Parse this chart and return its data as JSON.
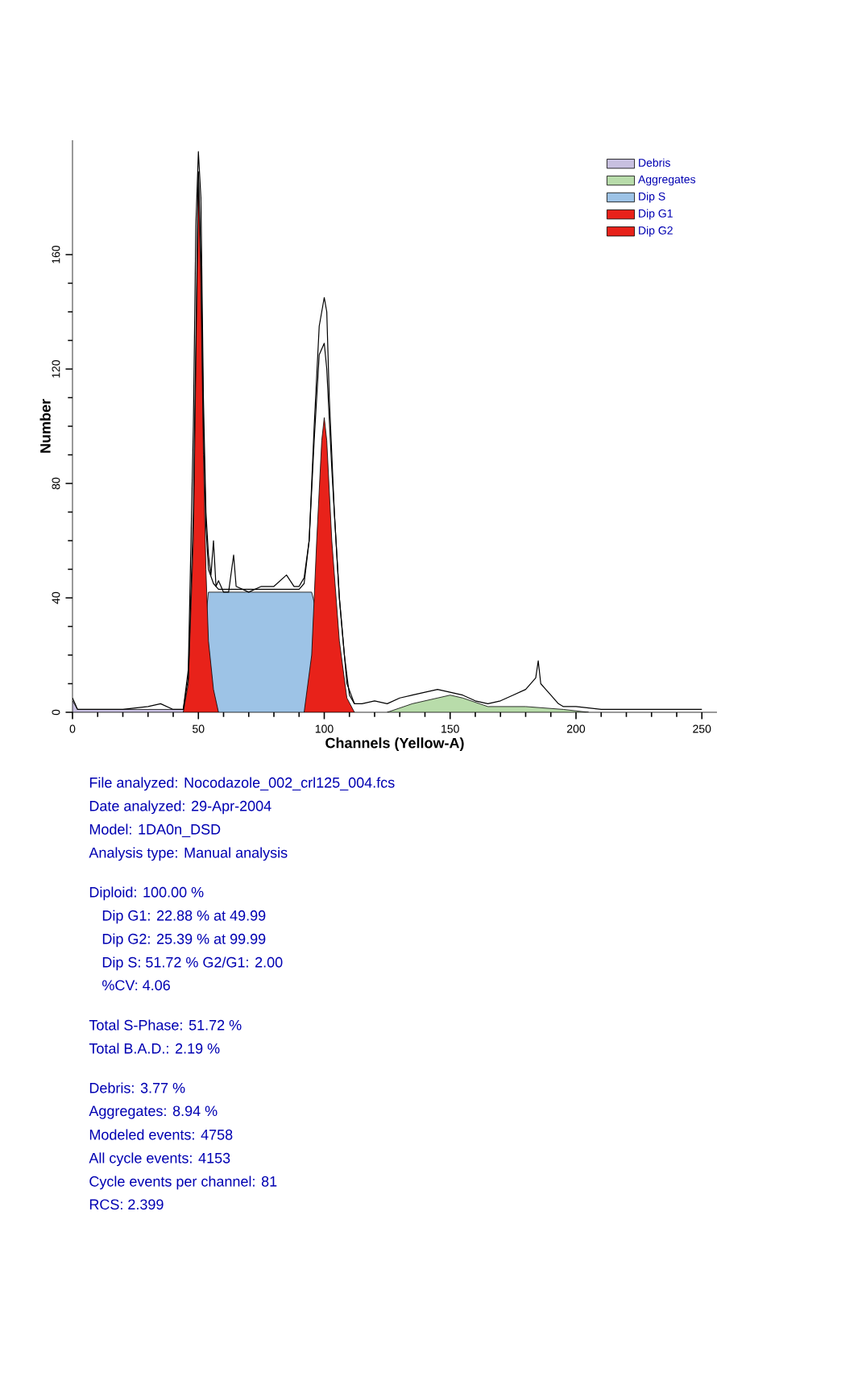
{
  "chart_data": {
    "type": "area",
    "xlabel": "Channels (Yellow-A)",
    "ylabel": "Number",
    "xlim": [
      0,
      256
    ],
    "ylim": [
      0,
      200
    ],
    "xticks": [
      0,
      50,
      100,
      150,
      200,
      250
    ],
    "yticks": [
      0,
      40,
      80,
      120,
      160
    ],
    "legend": "top right",
    "grid": false,
    "series": [
      {
        "name": "Debris",
        "color": "#c8c0e0",
        "x": [
          0,
          2,
          10,
          20,
          30,
          40,
          45,
          48
        ],
        "values": [
          4,
          1,
          1,
          1,
          1,
          1,
          1,
          0
        ]
      },
      {
        "name": "Aggregates",
        "color": "#b8dcaa",
        "x": [
          125,
          135,
          145,
          150,
          155,
          165,
          180,
          195,
          205
        ],
        "values": [
          0,
          3,
          5,
          6,
          5,
          2,
          2,
          1,
          0
        ]
      },
      {
        "name": "Dip S",
        "color": "#9dc3e6",
        "x": [
          49,
          54,
          95,
          107
        ],
        "values": [
          0,
          42,
          42,
          0
        ]
      },
      {
        "name": "Dip G1",
        "color": "#e8221a",
        "x": [
          44,
          46,
          48,
          49,
          50,
          51,
          52,
          53,
          54,
          56,
          58
        ],
        "values": [
          0,
          10,
          60,
          120,
          189,
          150,
          90,
          50,
          25,
          8,
          0
        ]
      },
      {
        "name": "Dip G2",
        "color": "#e8221a",
        "x": [
          92,
          95,
          97,
          99,
          100,
          101,
          103,
          106,
          109,
          112
        ],
        "values": [
          0,
          20,
          60,
          95,
          103,
          95,
          60,
          25,
          5,
          0
        ]
      },
      {
        "type": "line",
        "color": "#000000",
        "x": [
          0,
          1,
          2,
          5,
          10,
          20,
          30,
          35,
          40,
          44,
          46,
          48,
          49,
          50,
          51,
          52,
          53,
          54,
          55,
          56,
          57,
          58,
          60,
          62,
          64,
          65,
          70,
          75,
          80,
          85,
          88,
          90,
          92,
          94,
          96,
          98,
          100,
          101,
          102,
          104,
          106,
          108,
          110,
          112,
          115,
          120,
          125,
          130,
          135,
          140,
          145,
          150,
          155,
          160,
          165,
          170,
          175,
          180,
          184,
          185,
          186,
          188,
          190,
          193,
          195,
          200,
          210,
          220,
          230,
          240,
          250
        ],
        "values": [
          5,
          3,
          1,
          1,
          1,
          1,
          2,
          3,
          1,
          1,
          15,
          100,
          170,
          196,
          180,
          110,
          70,
          55,
          48,
          60,
          44,
          46,
          42,
          42,
          55,
          44,
          42,
          44,
          44,
          48,
          44,
          44,
          47,
          60,
          100,
          135,
          145,
          140,
          110,
          70,
          40,
          20,
          6,
          3,
          3,
          4,
          3,
          5,
          6,
          7,
          8,
          7,
          6,
          4,
          3,
          4,
          6,
          8,
          12,
          18,
          10,
          8,
          6,
          3,
          2,
          2,
          1,
          1,
          1,
          1,
          1
        ]
      },
      {
        "type": "line",
        "color": "#000000",
        "x": [
          44,
          46,
          48,
          49,
          50,
          51,
          52,
          53,
          54,
          56,
          58,
          60,
          90,
          92,
          94,
          96,
          98,
          100,
          101,
          103,
          106,
          109,
          112
        ],
        "values": [
          1,
          12,
          70,
          130,
          189,
          160,
          100,
          65,
          50,
          45,
          43,
          43,
          43,
          45,
          60,
          95,
          125,
          129,
          120,
          85,
          40,
          10,
          3
        ]
      }
    ],
    "annotations": [
      "File analyzed: Nocodazole_002_crl125_004.fcs",
      "Date analyzed: 29-Apr-2004",
      "Model: 1DA0n_DSD",
      "Analysis type: Manual analysis",
      "Diploid: 100.00 %",
      "Dip G1: 22.88 % at 49.99",
      "Dip G2: 25.39 % at 99.99",
      "Dip S: 51.72 %    G2/G1: 2.00",
      "%CV: 4.06",
      "Total S-Phase: 51.72 %",
      "Total B.A.D.: 2.19 %",
      "Debris: 3.77 %",
      "Aggregates: 8.94 %",
      "Modeled events: 4758",
      "All cycle events: 4153",
      "Cycle events per channel: 81",
      "RCS: 2.399"
    ]
  }
}
